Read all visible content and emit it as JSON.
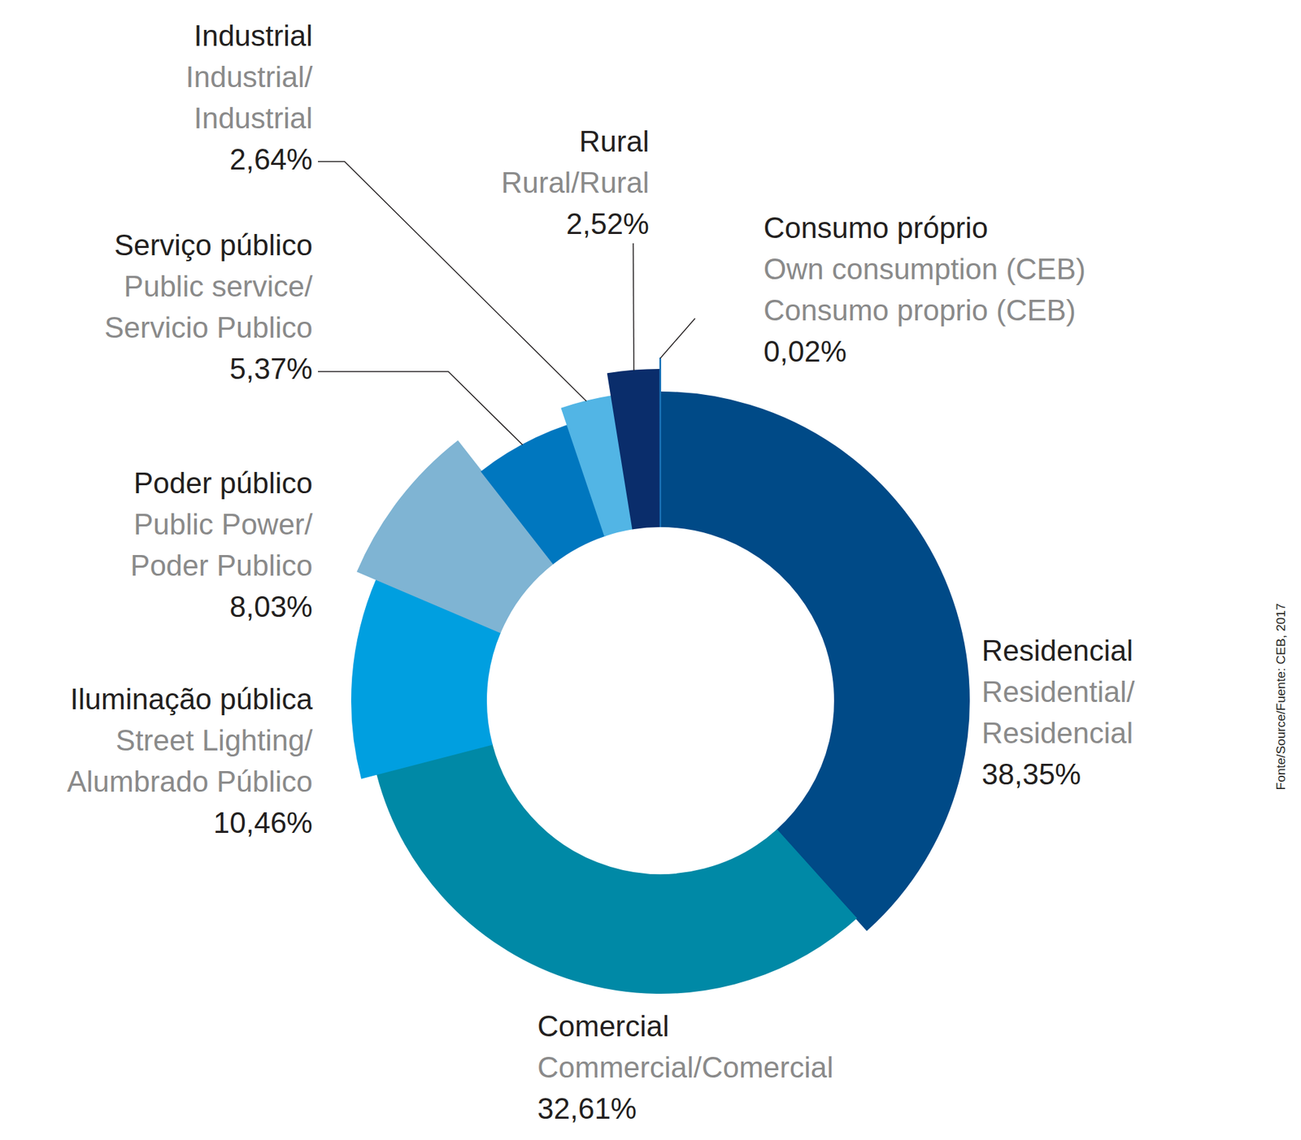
{
  "chart_data": {
    "type": "donut",
    "categories": [
      "Residencial",
      "Comercial",
      "Iluminação pública",
      "Poder público",
      "Serviço público",
      "Industrial",
      "Rural",
      "Consumo próprio"
    ],
    "translations": [
      [
        "Residential/",
        "Residencial"
      ],
      [
        "Commercial/Comercial"
      ],
      [
        "Street Lighting/",
        "Alumbrado Público"
      ],
      [
        "Public Power/",
        "Poder Publico"
      ],
      [
        "Public service/",
        "Servicio Publico"
      ],
      [
        "Industrial/",
        "Industrial"
      ],
      [
        "Rural/Rural"
      ],
      [
        "Own consumption (CEB)",
        "Consumo proprio (CEB)"
      ]
    ],
    "values": [
      38.35,
      32.61,
      10.46,
      8.03,
      5.37,
      2.64,
      2.52,
      0.02
    ],
    "value_labels": [
      "38,35%",
      "32,61%",
      "10,46%",
      "8,03%",
      "5,37%",
      "2,64%",
      "2,52%",
      "0,02%"
    ],
    "colors": [
      "#004a87",
      "#0089a6",
      "#009fe0",
      "#7fb4d3",
      "#0077bf",
      "#52b5e5",
      "#0a2d6b",
      "#1a73b8"
    ],
    "data_labels": true,
    "source": "Fonte/Source/Fuente: CEB, 2017"
  }
}
